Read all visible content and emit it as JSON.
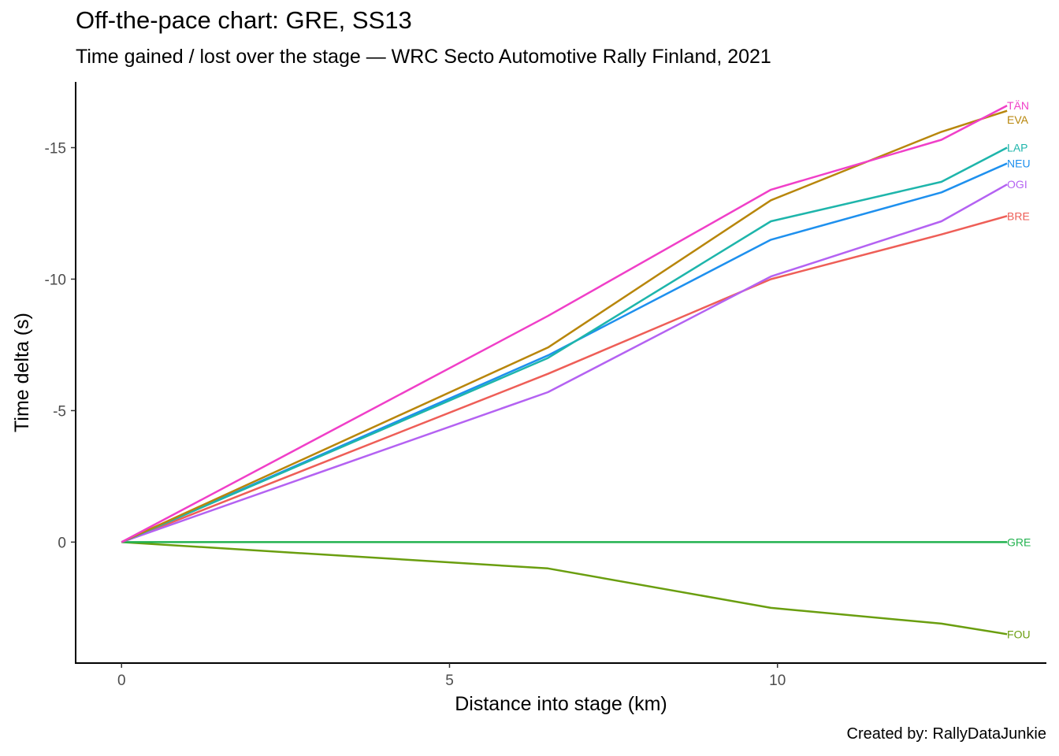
{
  "title": "Off-the-pace chart: GRE, SS13",
  "subtitle": "Time gained / lost over the stage — WRC Secto Automotive Rally Finland, 2021",
  "caption": "Created by: RallyDataJunkie",
  "chart_data": {
    "type": "line",
    "xlabel": "Distance into stage (km)",
    "ylabel": "Time delta (s)",
    "xlim": [
      -0.7,
      14.1
    ],
    "ylim": [
      4.6,
      -17.5
    ],
    "y_reversed": true,
    "x_ticks": [
      0,
      5,
      10
    ],
    "y_ticks": [
      -15,
      -10,
      -5,
      0
    ],
    "grid": false,
    "legend": "none (direct labels at line ends)",
    "x": [
      0,
      6.5,
      9.9,
      12.5,
      13.5
    ],
    "series": [
      {
        "name": "TÄN",
        "color": "#f03fc8",
        "values": [
          0,
          -8.6,
          -13.4,
          -15.3,
          -16.6
        ]
      },
      {
        "name": "EVA",
        "color": "#b8860b",
        "values": [
          0,
          -7.4,
          -13.0,
          -15.6,
          -16.4
        ]
      },
      {
        "name": "LAP",
        "color": "#1eb5ab",
        "values": [
          0,
          -7.0,
          -12.2,
          -13.7,
          -15.0
        ]
      },
      {
        "name": "NEU",
        "color": "#1e90ee",
        "values": [
          0,
          -7.1,
          -11.5,
          -13.3,
          -14.4
        ]
      },
      {
        "name": "OGI",
        "color": "#b462f2",
        "values": [
          0,
          -5.7,
          -10.1,
          -12.2,
          -13.6
        ]
      },
      {
        "name": "BRE",
        "color": "#ee5e57",
        "values": [
          0,
          -6.4,
          -10.0,
          -11.7,
          -12.4
        ]
      },
      {
        "name": "GRE",
        "color": "#22b24f",
        "values": [
          0,
          0,
          0,
          0,
          0
        ]
      },
      {
        "name": "FOU",
        "color": "#6a9e0f",
        "values": [
          0,
          1.0,
          2.5,
          3.1,
          3.5
        ]
      }
    ]
  }
}
